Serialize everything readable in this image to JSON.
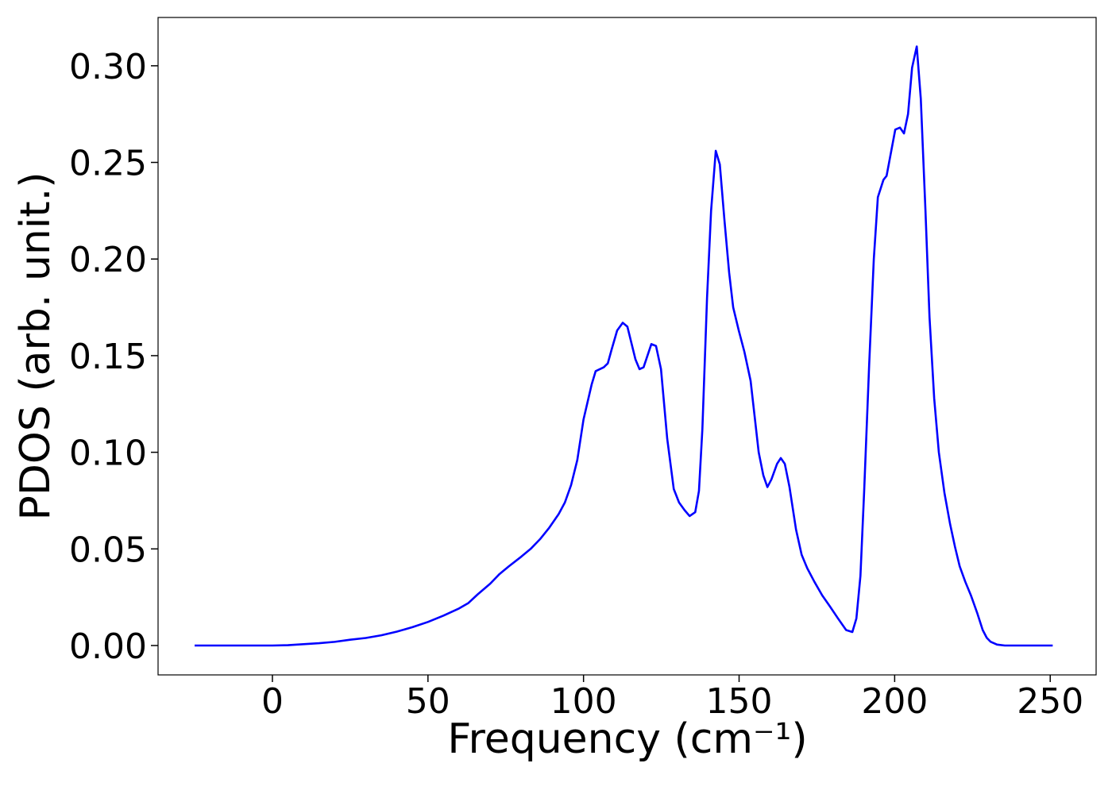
{
  "chart_data": {
    "type": "line",
    "x_label": "Frequency (cm⁻¹)",
    "y_label": "PDOS (arb. unit.)",
    "x": [
      -25,
      0,
      5,
      10,
      15,
      20,
      25,
      30,
      35,
      40,
      45,
      50,
      55,
      60,
      63,
      66,
      70,
      73,
      76,
      80,
      83,
      86,
      89,
      92,
      94,
      96,
      98,
      100,
      102.6,
      103.9,
      106.5,
      107.8,
      109,
      110.8,
      112.6,
      114.1,
      116.7,
      118,
      119.3,
      121.8,
      123.3,
      124.9,
      126.9,
      129,
      130.7,
      132.5,
      134.1,
      135.9,
      137.1,
      138.2,
      139.7,
      141,
      142.5,
      143.8,
      145.3,
      146.8,
      148.1,
      149.9,
      151.7,
      153.7,
      156.3,
      157.8,
      159.1,
      160.4,
      162.2,
      163.4,
      164.7,
      166.2,
      168.3,
      170.1,
      171.9,
      174.2,
      176.7,
      179.3,
      181.8,
      184.4,
      186.4,
      187.7,
      189,
      190.2,
      191.8,
      193.3,
      194.6,
      196.4,
      197.4,
      200.2,
      201.7,
      203,
      204.3,
      205.6,
      207.1,
      208.4,
      209.9,
      211.2,
      212.7,
      214.2,
      216,
      217.8,
      219.4,
      220.9,
      222.7,
      224.5,
      226.5,
      228.3,
      229.6,
      230.8,
      232.9,
      235.4,
      250.8
    ],
    "series": [
      {
        "name": "PDOS",
        "color": "#0000ff",
        "values": [
          0,
          0,
          0.0002,
          0.0007,
          0.0012,
          0.0019,
          0.003,
          0.0039,
          0.0053,
          0.0072,
          0.0095,
          0.0122,
          0.0155,
          0.0192,
          0.022,
          0.0265,
          0.032,
          0.037,
          0.041,
          0.046,
          0.05,
          0.055,
          0.061,
          0.068,
          0.074,
          0.083,
          0.096,
          0.117,
          0.135,
          0.142,
          0.144,
          0.146,
          0.153,
          0.163,
          0.167,
          0.165,
          0.148,
          0.143,
          0.144,
          0.156,
          0.155,
          0.143,
          0.107,
          0.081,
          0.074,
          0.07,
          0.067,
          0.069,
          0.08,
          0.112,
          0.18,
          0.225,
          0.256,
          0.249,
          0.22,
          0.193,
          0.175,
          0.163,
          0.152,
          0.137,
          0.1,
          0.088,
          0.082,
          0.086,
          0.094,
          0.097,
          0.094,
          0.082,
          0.06,
          0.047,
          0.04,
          0.033,
          0.026,
          0.02,
          0.014,
          0.008,
          0.007,
          0.014,
          0.036,
          0.08,
          0.145,
          0.2,
          0.232,
          0.241,
          0.243,
          0.267,
          0.268,
          0.265,
          0.275,
          0.299,
          0.31,
          0.283,
          0.225,
          0.17,
          0.128,
          0.1,
          0.079,
          0.063,
          0.051,
          0.041,
          0.033,
          0.026,
          0.017,
          0.008,
          0.004,
          0.002,
          0.0005,
          0,
          0
        ]
      }
    ],
    "xlim": [
      -36.75,
      264.75
    ],
    "ylim": [
      -0.0152,
      0.325
    ],
    "xticks": [
      0,
      50,
      100,
      150,
      200,
      250
    ],
    "yticks": [
      {
        "value": 0,
        "label": "0.00"
      },
      {
        "value": 0.05,
        "label": "0.05"
      },
      {
        "value": 0.1,
        "label": "0.10"
      },
      {
        "value": 0.15,
        "label": "0.15"
      },
      {
        "value": 0.2,
        "label": "0.20"
      },
      {
        "value": 0.25,
        "label": "0.25"
      },
      {
        "value": 0.3,
        "label": "0.30"
      }
    ],
    "grid": false
  }
}
